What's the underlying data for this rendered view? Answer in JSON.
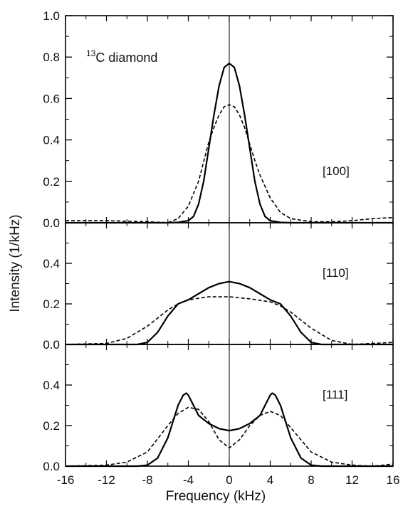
{
  "chart_data": {
    "type": "line",
    "xlabel": "Frequency (kHz)",
    "ylabel": "Intensity  (1/kHz)",
    "xlim": [
      -16,
      16
    ],
    "xticks": [
      -16,
      -12,
      -8,
      -4,
      0,
      4,
      8,
      12,
      16
    ],
    "annotation": {
      "prefix": "13",
      "text": "C diamond"
    },
    "panels": [
      {
        "label": "[100]",
        "ylim": [
          0,
          1.0
        ],
        "yticks": [
          0.0,
          0.2,
          0.4,
          0.6,
          0.8,
          1.0
        ],
        "ytick_labels": [
          "0.0",
          "0.2",
          "0.4",
          "0.6",
          "0.8",
          "1.0"
        ],
        "series": [
          {
            "style": "solid",
            "x": [
              -16,
              -6,
              -5,
              -4,
              -3.5,
              -3,
              -2.5,
              -2,
              -1.5,
              -1,
              -0.5,
              0,
              0.5,
              1,
              1.5,
              2,
              2.5,
              3,
              3.5,
              4,
              5,
              6,
              16
            ],
            "y": [
              0.0,
              0.0,
              0.002,
              0.01,
              0.03,
              0.09,
              0.2,
              0.36,
              0.52,
              0.66,
              0.75,
              0.77,
              0.75,
              0.66,
              0.52,
              0.36,
              0.2,
              0.09,
              0.03,
              0.01,
              0.002,
              0.0,
              0.0
            ]
          },
          {
            "style": "dashed",
            "x": [
              -16,
              -12,
              -8,
              -6,
              -5,
              -4,
              -3,
              -2,
              -1.5,
              -1,
              -0.5,
              0,
              0.5,
              1,
              1.5,
              2,
              2.5,
              3,
              4,
              5,
              6,
              8,
              10,
              12,
              14,
              16
            ],
            "y": [
              0.01,
              0.01,
              0.005,
              0.0,
              0.02,
              0.08,
              0.2,
              0.39,
              0.46,
              0.52,
              0.56,
              0.57,
              0.56,
              0.52,
              0.46,
              0.38,
              0.3,
              0.23,
              0.12,
              0.05,
              0.02,
              0.005,
              0.005,
              0.01,
              0.02,
              0.025
            ]
          }
        ]
      },
      {
        "label": "[110]",
        "ylim": [
          0,
          0.6
        ],
        "yticks": [
          0.0,
          0.2,
          0.4
        ],
        "ytick_labels": [
          "0.0",
          "0.2",
          "0.4"
        ],
        "series": [
          {
            "style": "solid",
            "x": [
              -16,
              -9,
              -8,
              -7,
              -6,
              -5,
              -4,
              -3,
              -2,
              -1,
              0,
              1,
              2,
              3,
              4,
              5,
              6,
              7,
              8,
              9,
              16
            ],
            "y": [
              0.0,
              0.0,
              0.01,
              0.06,
              0.14,
              0.2,
              0.22,
              0.25,
              0.28,
              0.3,
              0.31,
              0.3,
              0.28,
              0.25,
              0.22,
              0.2,
              0.14,
              0.06,
              0.01,
              0.0,
              0.0
            ]
          },
          {
            "style": "dashed",
            "x": [
              -16,
              -12,
              -10,
              -8,
              -6,
              -5,
              -4,
              -2,
              0,
              2,
              4,
              5,
              6,
              8,
              10,
              12,
              14,
              16
            ],
            "y": [
              0.0,
              0.005,
              0.03,
              0.09,
              0.17,
              0.2,
              0.22,
              0.235,
              0.235,
              0.225,
              0.21,
              0.19,
              0.16,
              0.08,
              0.02,
              0.0,
              0.005,
              0.01
            ]
          }
        ]
      },
      {
        "label": "[111]",
        "ylim": [
          0,
          0.6
        ],
        "yticks": [
          0.0,
          0.2,
          0.4
        ],
        "ytick_labels": [
          "0.0",
          "0.2",
          "0.4"
        ],
        "series": [
          {
            "style": "solid",
            "x": [
              -16,
              -9,
              -8,
              -7,
              -6,
              -5,
              -4.5,
              -4.2,
              -4,
              -3.5,
              -3,
              -2,
              -1,
              0,
              1,
              2,
              3,
              3.5,
              4,
              4.2,
              4.5,
              5,
              6,
              7,
              8,
              9,
              16
            ],
            "y": [
              0.0,
              0.0,
              0.005,
              0.04,
              0.14,
              0.3,
              0.35,
              0.36,
              0.35,
              0.3,
              0.25,
              0.21,
              0.185,
              0.175,
              0.185,
              0.21,
              0.25,
              0.3,
              0.35,
              0.36,
              0.35,
              0.3,
              0.14,
              0.04,
              0.005,
              0.0,
              0.0
            ]
          },
          {
            "style": "dashed",
            "x": [
              -16,
              -12,
              -10,
              -8,
              -6,
              -5,
              -4,
              -3,
              -2,
              -1,
              0,
              1,
              2,
              3,
              4,
              5,
              6,
              8,
              10,
              12,
              14,
              16
            ],
            "y": [
              0.0,
              0.005,
              0.02,
              0.07,
              0.2,
              0.26,
              0.29,
              0.28,
              0.22,
              0.13,
              0.09,
              0.13,
              0.2,
              0.25,
              0.27,
              0.25,
              0.19,
              0.07,
              0.02,
              0.005,
              0.0,
              0.01
            ]
          }
        ]
      }
    ]
  }
}
